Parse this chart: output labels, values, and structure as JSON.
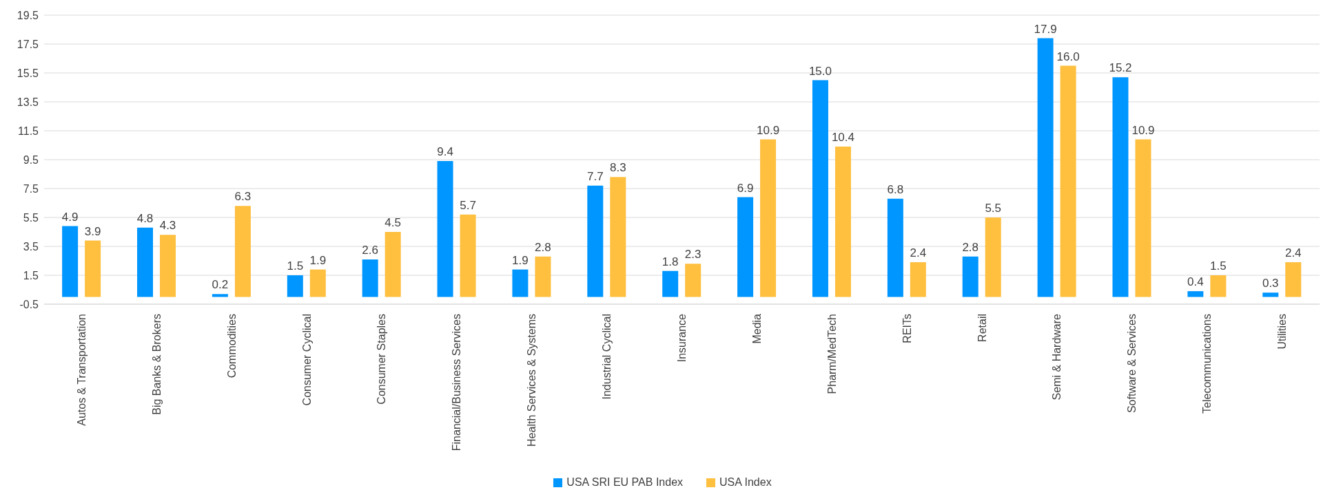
{
  "chart_data": {
    "type": "bar",
    "categories": [
      "Autos & Transportation",
      "Big Banks & Brokers",
      "Commodities",
      "Consumer Cyclical",
      "Consumer Staples",
      "Financial/Business Services",
      "Health Services & Systems",
      "Industrial Cyclical",
      "Insurance",
      "Media",
      "Pharm/MedTech",
      "REITs",
      "Retail",
      "Semi & Hardware",
      "Software & Services",
      "Telecommunications",
      "Utilities"
    ],
    "series": [
      {
        "name": "USA SRI EU PAB Index",
        "color": "#0096ff",
        "values": [
          4.9,
          4.8,
          0.2,
          1.5,
          2.6,
          9.4,
          1.9,
          7.7,
          1.8,
          6.9,
          15.0,
          6.8,
          2.8,
          17.9,
          15.2,
          0.4,
          0.3
        ],
        "value_labels": [
          "4.9",
          "4.8",
          "0.2",
          "1.5",
          "2.6",
          "9.4",
          "1.9",
          "7.7",
          "1.8",
          "6.9",
          "15.0",
          "6.8",
          "2.8",
          "17.9",
          "15.2",
          "0.4",
          "0.3"
        ]
      },
      {
        "name": "USA Index",
        "color": "#ffbf3f",
        "values": [
          3.9,
          4.3,
          6.3,
          1.9,
          4.5,
          5.7,
          2.8,
          8.3,
          2.3,
          10.9,
          10.4,
          2.4,
          5.5,
          16.0,
          10.9,
          1.5,
          2.4
        ],
        "value_labels": [
          "3.9",
          "4.3",
          "6.3",
          "1.9",
          "4.5",
          "5.7",
          "2.8",
          "8.3",
          "2.3",
          "10.9",
          "10.4",
          "2.4",
          "5.5",
          "16.0",
          "10.9",
          "1.5",
          "2.4"
        ]
      }
    ],
    "ylim": [
      -0.5,
      19.5
    ],
    "yticks": [
      -0.5,
      1.5,
      3.5,
      5.5,
      7.5,
      9.5,
      11.5,
      13.5,
      15.5,
      17.5,
      19.5
    ],
    "grid": "y",
    "legend": "bottom"
  }
}
